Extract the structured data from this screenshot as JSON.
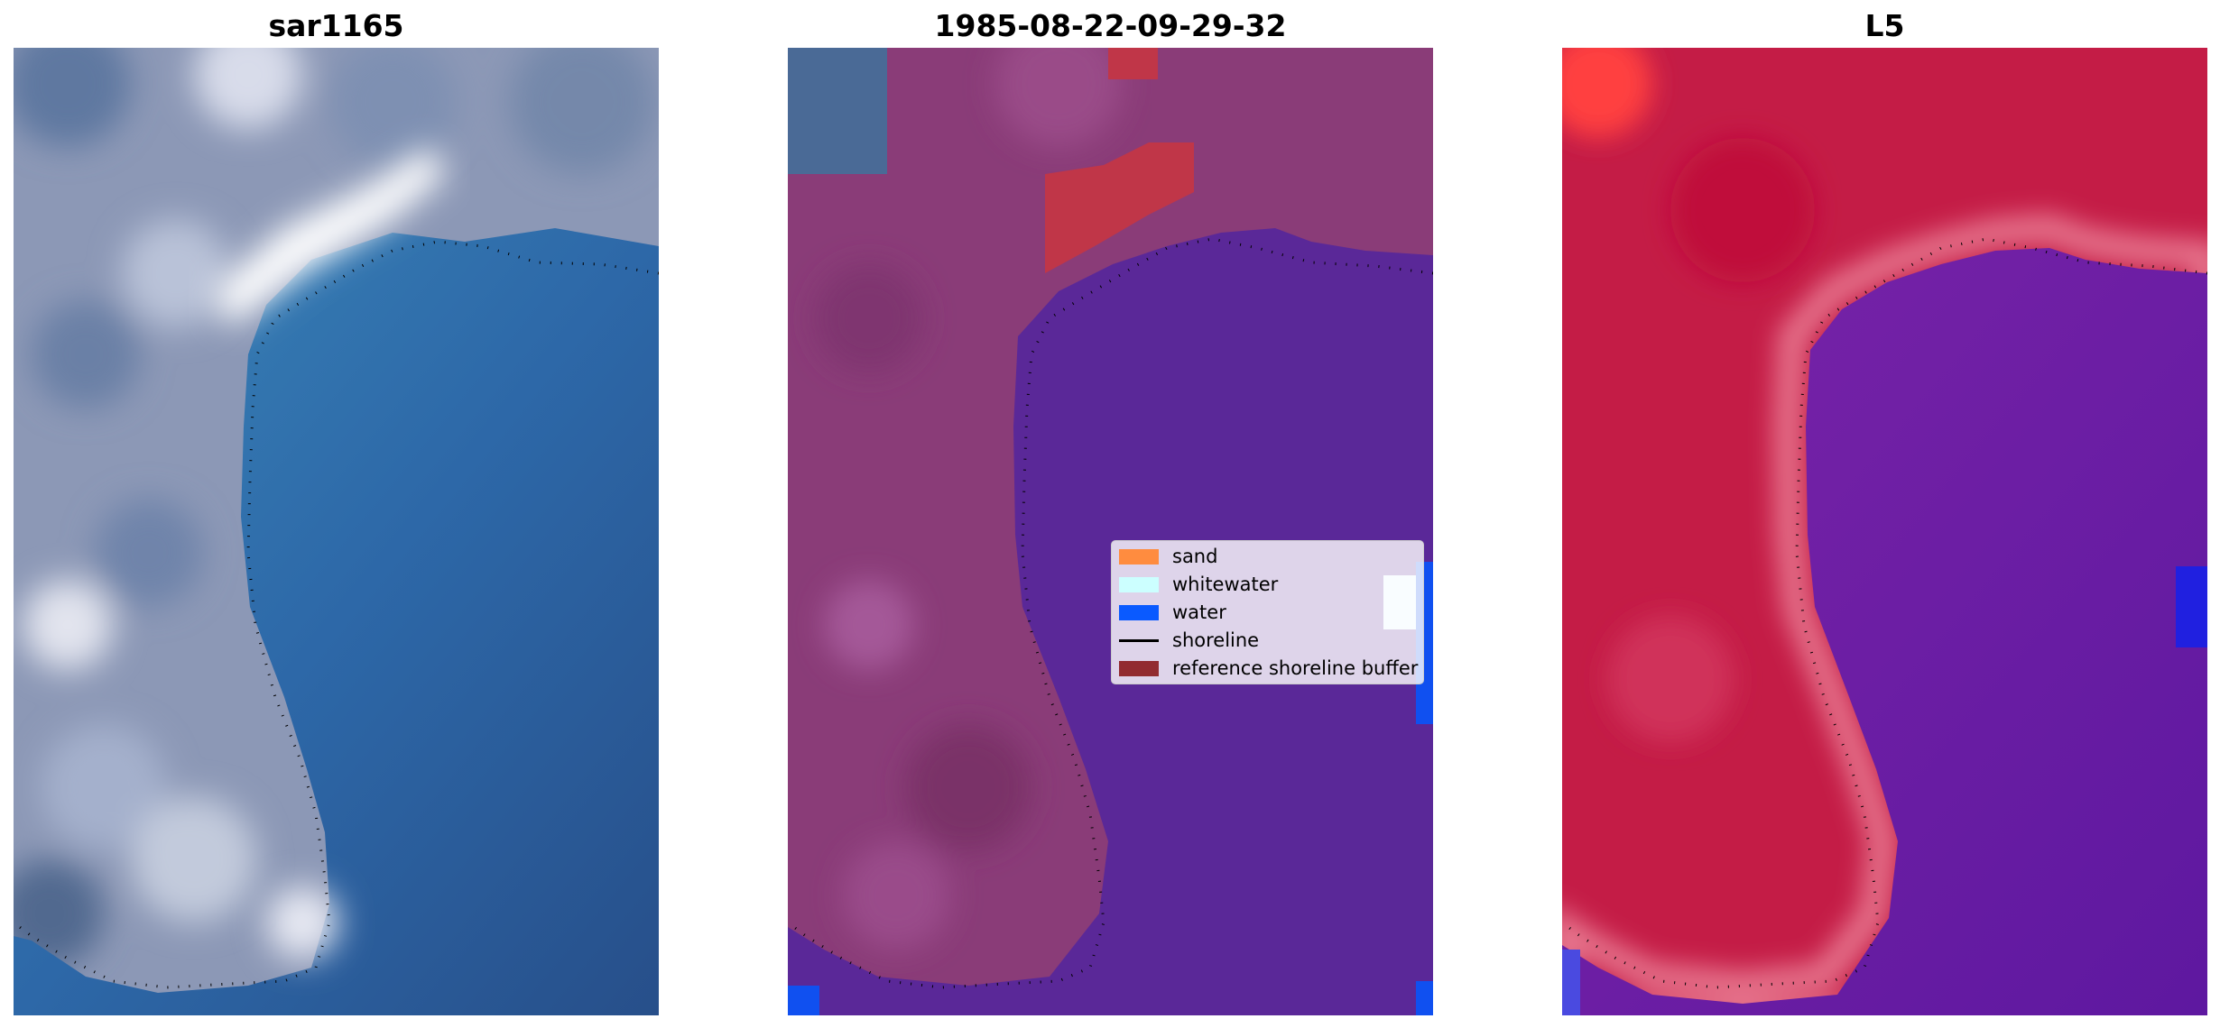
{
  "panels": [
    {
      "title": "sar1165",
      "kind": "rgb"
    },
    {
      "title": "1985-08-22-09-29-32",
      "kind": "classified"
    },
    {
      "title": "L5",
      "kind": "index"
    }
  ],
  "legend": {
    "items": [
      {
        "label": "sand",
        "color": "#ff8c3f",
        "type": "patch"
      },
      {
        "label": "whitewater",
        "color": "#ccffff",
        "type": "patch"
      },
      {
        "label": "water",
        "color": "#0a5aff",
        "type": "patch"
      },
      {
        "label": "shoreline",
        "color": "#000000",
        "type": "line"
      },
      {
        "label": "reference shoreline buffer",
        "color": "#922b30",
        "type": "patch"
      }
    ]
  },
  "colors": {
    "rgb_land": "#8a96b5",
    "rgb_water": "#2c5f9e",
    "rgb_surf": "#ffffff",
    "class_land": "#8a3c78",
    "class_water": "#5a2898",
    "class_buffer": "#c03648",
    "class_water_pixels": "#1050f0",
    "index_land": "#c41c46",
    "index_water": "#6a1aa0",
    "index_edge": "#e07080",
    "shoreline": "#000000"
  }
}
